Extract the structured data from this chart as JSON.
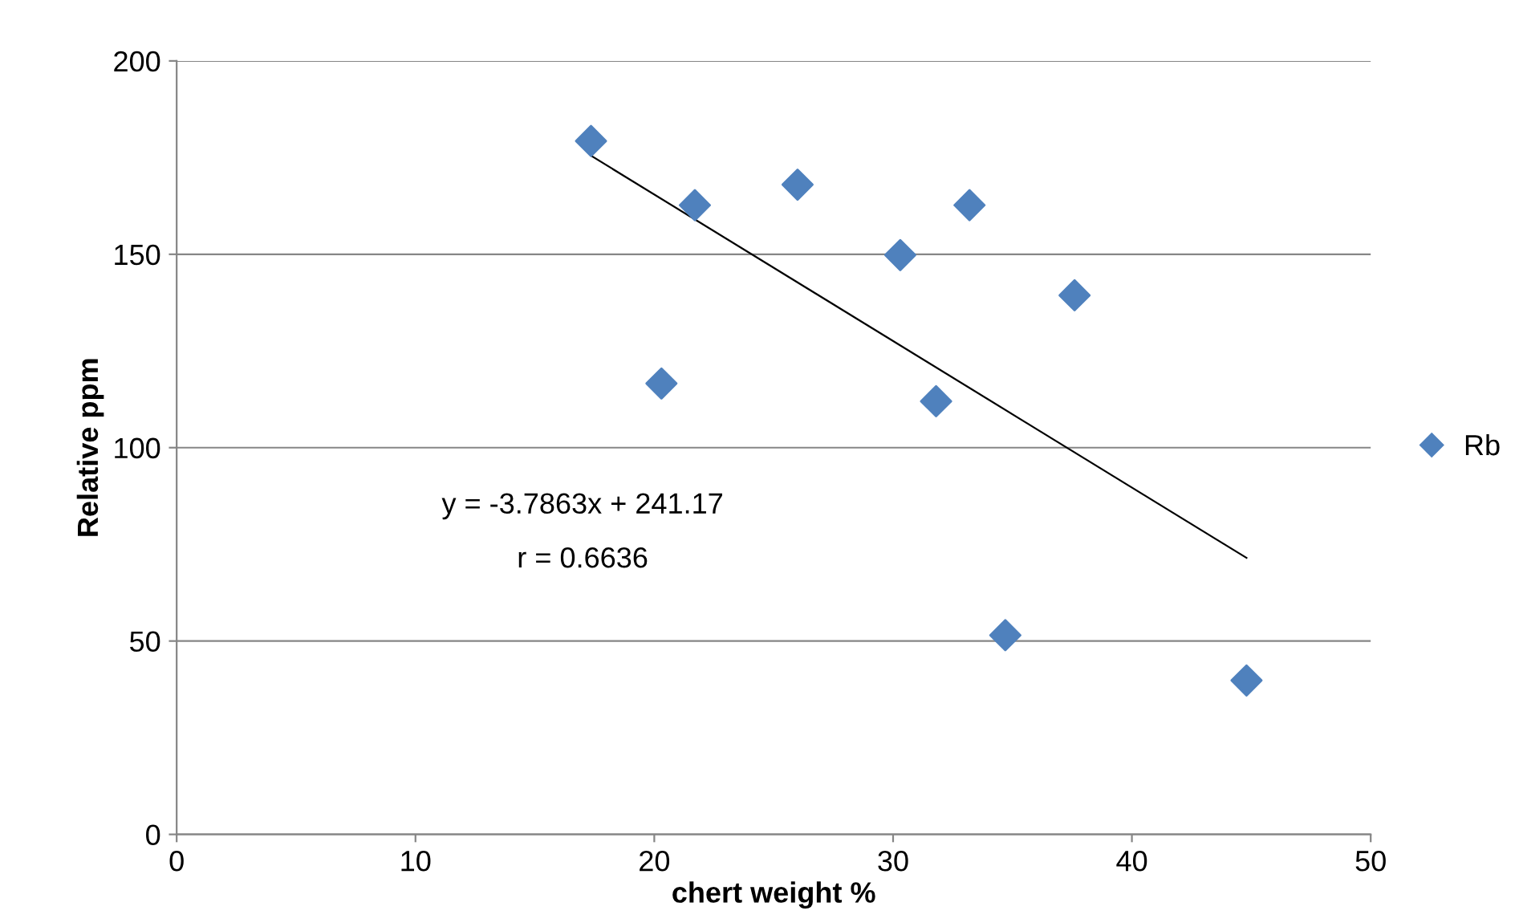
{
  "chart_data": {
    "type": "scatter",
    "xlabel": "chert weight %",
    "ylabel": "Relative ppm",
    "xlim": [
      0,
      50
    ],
    "ylim": [
      0,
      200
    ],
    "xticks": [
      0,
      10,
      20,
      30,
      40,
      50
    ],
    "yticks": [
      0,
      50,
      100,
      150,
      200
    ],
    "grid": "y",
    "legend": "right",
    "marker": "diamond",
    "series": [
      {
        "name": "Rb",
        "color": "#4f81bd",
        "x": [
          17.35,
          20.3,
          21.7,
          26.0,
          30.3,
          31.8,
          33.2,
          34.7,
          37.6,
          44.8
        ],
        "values": [
          179.3,
          116.6,
          162.7,
          168,
          149.8,
          112,
          162.7,
          51.5,
          139.4,
          39.8
        ]
      },
      {
        "type": "line",
        "color": "#000000",
        "x": [
          17.35,
          44.8
        ],
        "values": [
          175.5,
          71.5
        ],
        "marker": "none"
      }
    ],
    "annotations": [
      "y = -3.7863x + 241.17",
      "r = 0.6636"
    ]
  }
}
